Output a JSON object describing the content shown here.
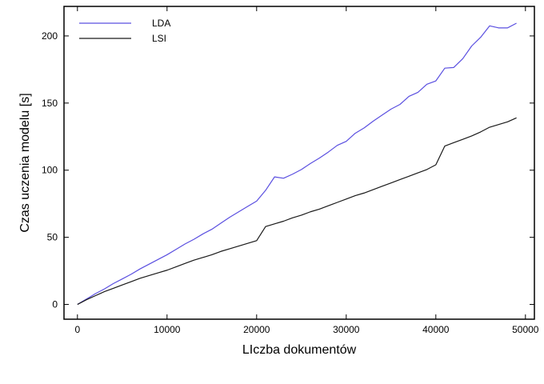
{
  "chart_data": {
    "type": "line",
    "title": "",
    "xlabel": "LIczba dokumentów",
    "ylabel": "Czas uczenia modelu [s]",
    "xlim": [
      -1500,
      51000
    ],
    "ylim": [
      -11,
      222
    ],
    "xticks": [
      0,
      10000,
      20000,
      30000,
      40000,
      50000
    ],
    "xtick_labels": [
      "0",
      "10000",
      "20000",
      "30000",
      "40000",
      "50000"
    ],
    "yticks": [
      0,
      50,
      100,
      150,
      200
    ],
    "ytick_labels": [
      "0",
      "50",
      "100",
      "150",
      "200"
    ],
    "grid": false,
    "legend_position": "top-left",
    "series": [
      {
        "name": "LDA",
        "color": "#5a4fe0",
        "x": [
          0,
          1000,
          2000,
          3000,
          4000,
          5000,
          6000,
          7000,
          8000,
          9000,
          10000,
          11000,
          12000,
          13000,
          14000,
          15000,
          16000,
          17000,
          18000,
          19000,
          20000,
          21000,
          22000,
          23000,
          24000,
          25000,
          26000,
          27000,
          28000,
          29000,
          30000,
          31000,
          32000,
          33000,
          34000,
          35000,
          36000,
          37000,
          38000,
          39000,
          40000,
          41000,
          42000,
          43000,
          44000,
          45000,
          46000,
          47000,
          48000,
          49000
        ],
        "y": [
          0,
          4,
          8,
          11.5,
          15.5,
          19,
          22.5,
          26.5,
          30,
          33.5,
          37,
          41,
          45,
          48.5,
          52.5,
          56,
          60.5,
          65,
          69,
          73,
          77,
          85,
          95,
          94,
          97,
          100.5,
          105,
          109,
          113.5,
          118.5,
          121.5,
          127.5,
          131.5,
          136.5,
          141,
          145.5,
          149,
          155,
          158,
          164,
          166.5,
          176,
          176.5,
          183,
          192.5,
          199,
          207.5,
          206,
          206,
          209.5
        ]
      },
      {
        "name": "LSI",
        "color": "#1a1a1a",
        "x": [
          0,
          1000,
          2000,
          3000,
          4000,
          5000,
          6000,
          7000,
          8000,
          9000,
          10000,
          11000,
          12000,
          13000,
          14000,
          15000,
          16000,
          17000,
          18000,
          19000,
          20000,
          21000,
          22000,
          23000,
          24000,
          25000,
          26000,
          27000,
          28000,
          29000,
          30000,
          31000,
          32000,
          33000,
          34000,
          35000,
          36000,
          37000,
          38000,
          39000,
          40000,
          41000,
          42000,
          43000,
          44000,
          45000,
          46000,
          47000,
          48000,
          49000
        ],
        "y": [
          0,
          3.5,
          6.5,
          9.5,
          12,
          14.5,
          17,
          19.5,
          21.5,
          23.5,
          25.5,
          28,
          30.5,
          33,
          35,
          37,
          39.5,
          41.5,
          43.5,
          45.5,
          47.5,
          58,
          60,
          62,
          64.5,
          66.5,
          69,
          71,
          73.5,
          76,
          78.5,
          81,
          83,
          85.5,
          88,
          90.5,
          93,
          95.5,
          98,
          100.5,
          104,
          118,
          120.5,
          123,
          125.5,
          128.5,
          132,
          134,
          136,
          139
        ]
      }
    ]
  }
}
